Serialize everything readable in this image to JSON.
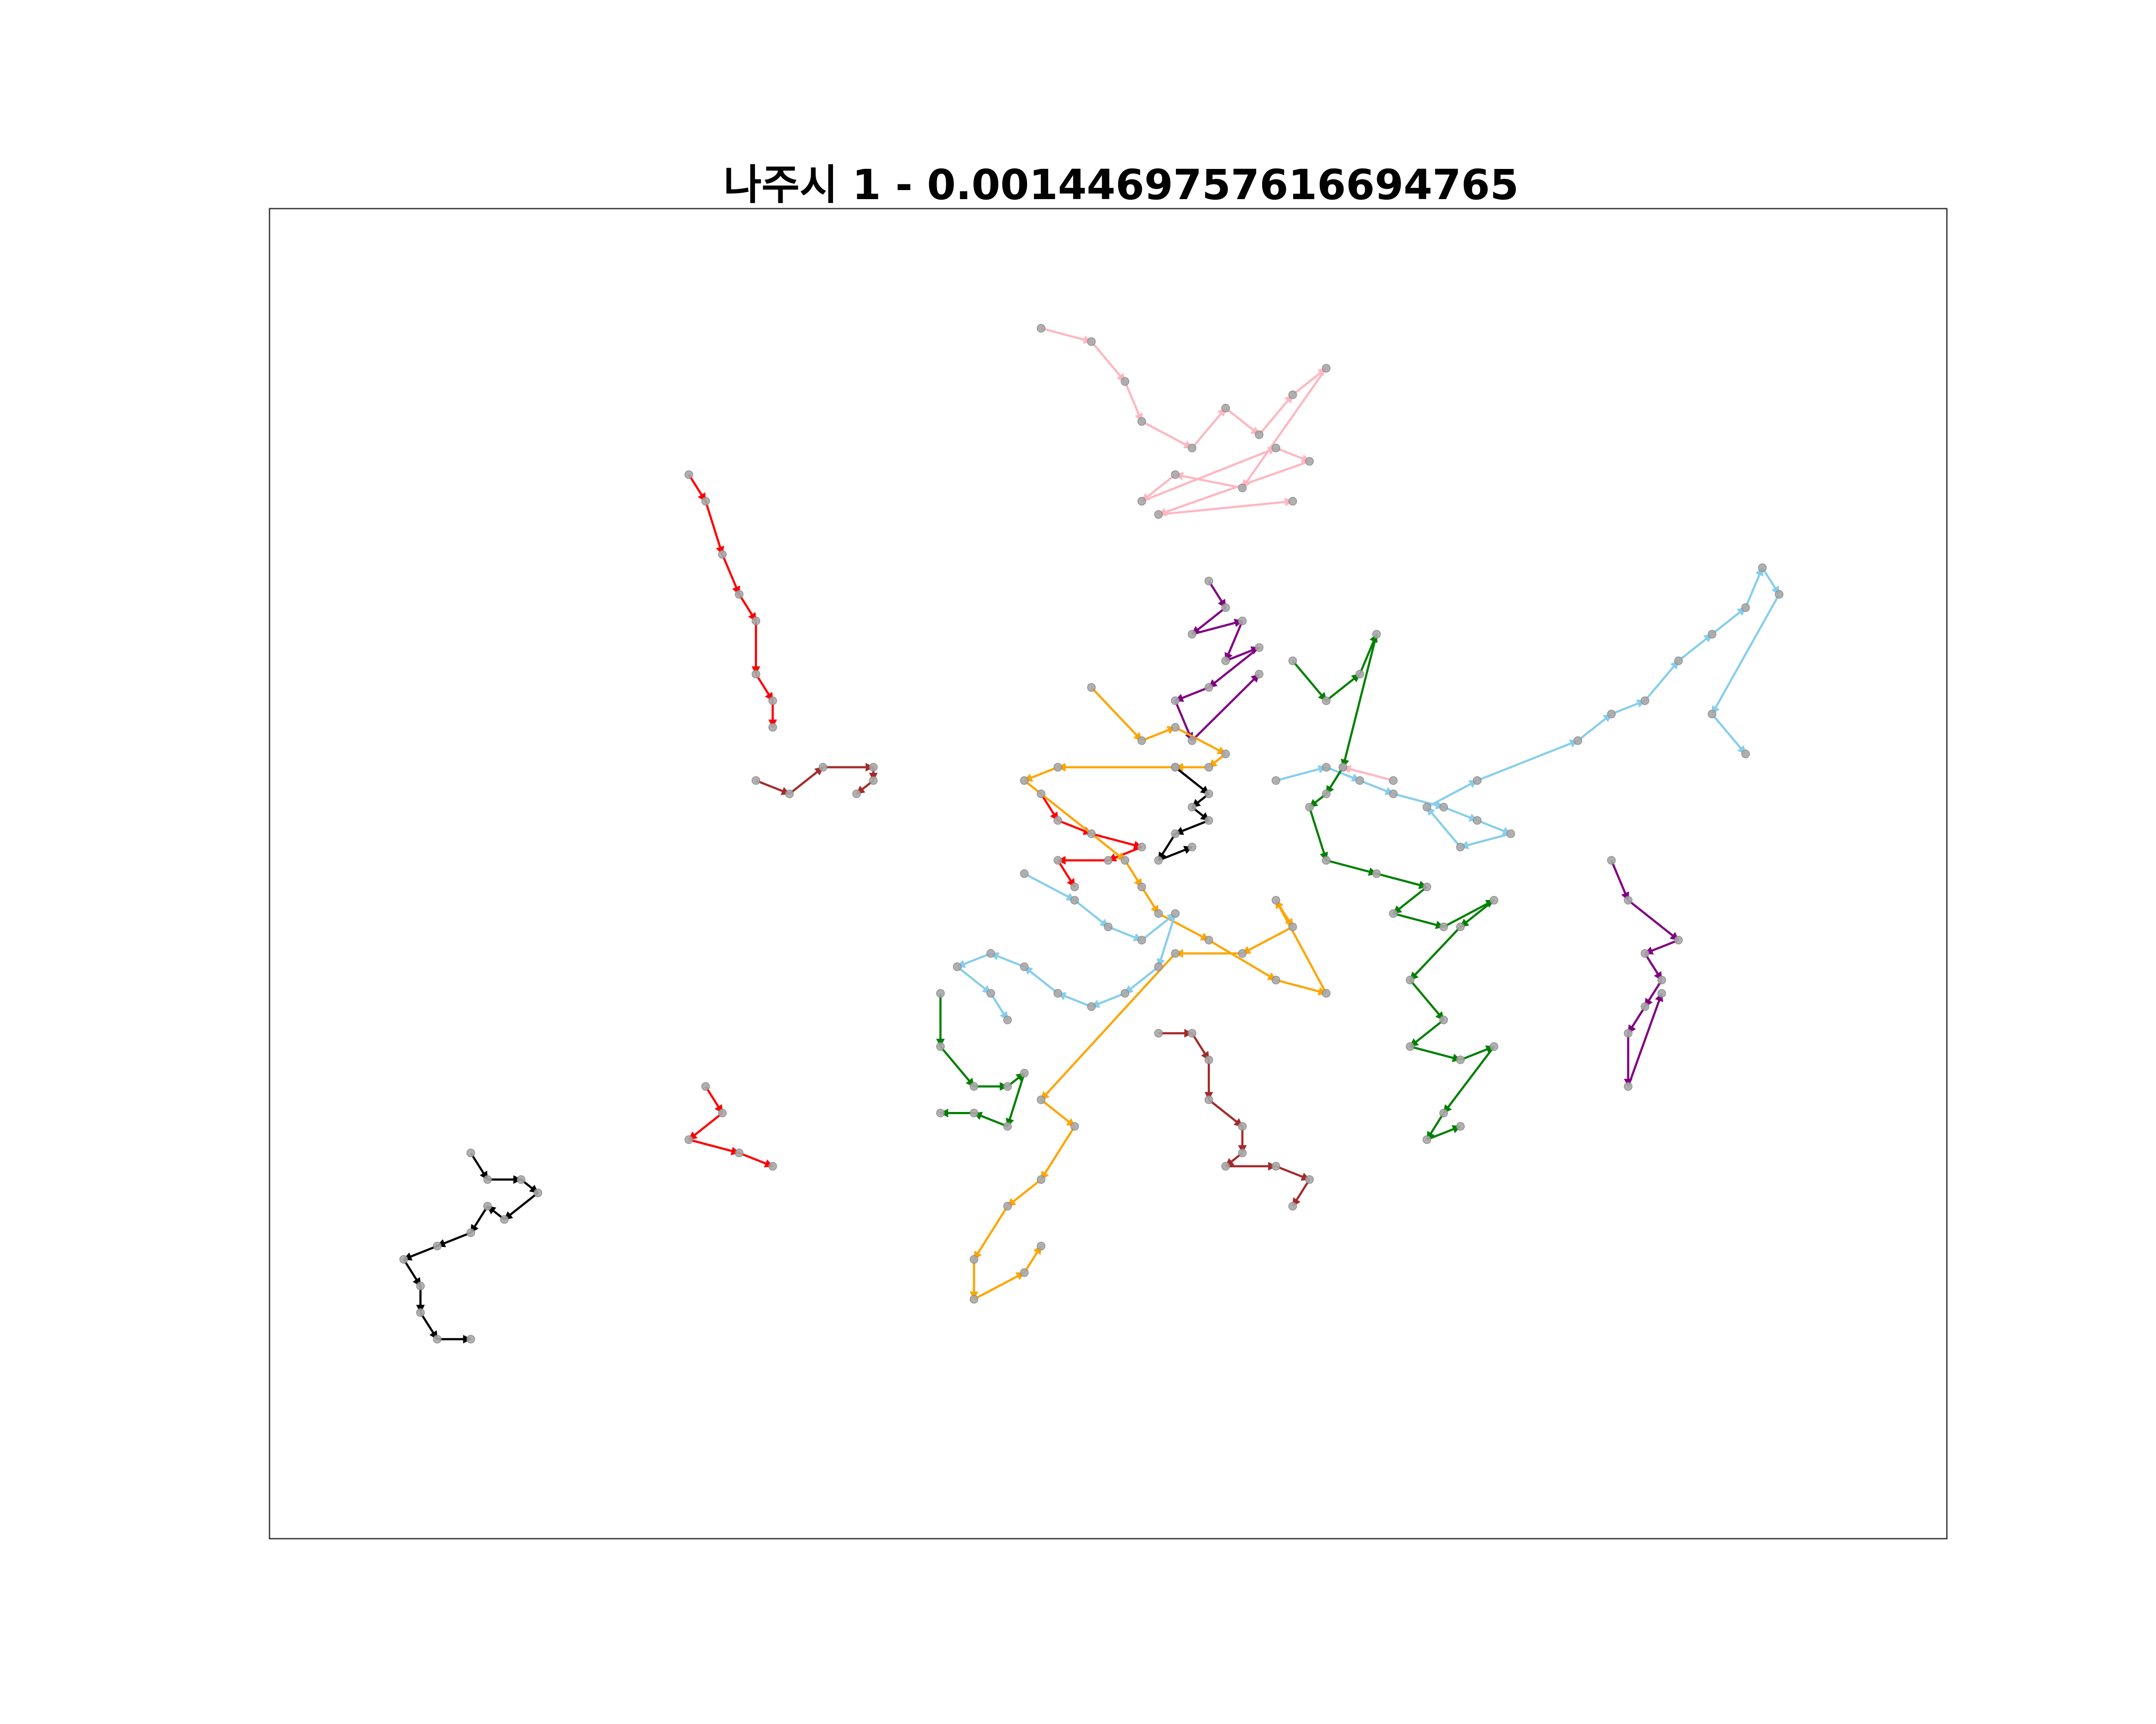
{
  "chart_data": {
    "type": "scatter",
    "title": "나주시 1 - 0.0014469757616694765",
    "xlabel": "",
    "ylabel": "",
    "xlim": [
      0,
      100
    ],
    "ylim": [
      0,
      100
    ],
    "axes_ticks": false,
    "grid": false,
    "legend": "none",
    "node_color": "#a9a9a9",
    "series": [
      {
        "color": "#ffb6c1",
        "points": [
          [
            46,
            91
          ],
          [
            49,
            90
          ],
          [
            51,
            87
          ],
          [
            52,
            84
          ],
          [
            55,
            82
          ],
          [
            57,
            85
          ],
          [
            59,
            83
          ],
          [
            61,
            86
          ],
          [
            63,
            88
          ],
          [
            58,
            79
          ],
          [
            54,
            80
          ],
          [
            52,
            78
          ],
          [
            60,
            82
          ],
          [
            62,
            81
          ],
          [
            53,
            77
          ],
          [
            61,
            78
          ],
          [
            67,
            57
          ],
          [
            64,
            58
          ]
        ]
      },
      {
        "color": "#800080",
        "points": [
          [
            56,
            72
          ],
          [
            57,
            70
          ],
          [
            55,
            68
          ],
          [
            58,
            69
          ],
          [
            57,
            66
          ],
          [
            59,
            67
          ],
          [
            56,
            64
          ],
          [
            54,
            63
          ],
          [
            55,
            60
          ],
          [
            59,
            65
          ],
          [
            80,
            51
          ],
          [
            81,
            48
          ],
          [
            84,
            45
          ],
          [
            82,
            44
          ],
          [
            83,
            42
          ],
          [
            82,
            40
          ],
          [
            81,
            38
          ],
          [
            81,
            34
          ],
          [
            83,
            41
          ]
        ]
      },
      {
        "color": "#ff0000",
        "points": [
          [
            25,
            80
          ],
          [
            26,
            78
          ],
          [
            27,
            74
          ],
          [
            28,
            71
          ],
          [
            29,
            69
          ],
          [
            29,
            65
          ],
          [
            30,
            63
          ],
          [
            30,
            61
          ],
          [
            46,
            56
          ],
          [
            47,
            54
          ],
          [
            49,
            53
          ],
          [
            52,
            52
          ],
          [
            50,
            51
          ],
          [
            47,
            51
          ],
          [
            48,
            49
          ],
          [
            26,
            34
          ],
          [
            27,
            32
          ],
          [
            25,
            30
          ],
          [
            28,
            29
          ],
          [
            30,
            28
          ]
        ]
      },
      {
        "color": "#a52a2a",
        "points": [
          [
            29,
            57
          ],
          [
            31,
            56
          ],
          [
            33,
            58
          ],
          [
            36,
            58
          ],
          [
            36,
            57
          ],
          [
            35,
            56
          ],
          [
            53,
            38
          ],
          [
            55,
            38
          ],
          [
            56,
            36
          ],
          [
            56,
            33
          ],
          [
            58,
            31
          ],
          [
            58,
            29
          ],
          [
            57,
            28
          ],
          [
            60,
            28
          ],
          [
            62,
            27
          ],
          [
            61,
            25
          ]
        ]
      },
      {
        "color": "#ffa500",
        "points": [
          [
            49,
            64
          ],
          [
            52,
            60
          ],
          [
            54,
            61
          ],
          [
            57,
            59
          ],
          [
            56,
            58
          ],
          [
            54,
            58
          ],
          [
            47,
            58
          ],
          [
            45,
            57
          ],
          [
            51,
            51
          ],
          [
            52,
            49
          ],
          [
            53,
            47
          ],
          [
            56,
            45
          ],
          [
            60,
            42
          ],
          [
            63,
            41
          ],
          [
            60,
            48
          ],
          [
            61,
            46
          ],
          [
            58,
            44
          ],
          [
            54,
            44
          ],
          [
            46,
            33
          ],
          [
            48,
            31
          ],
          [
            46,
            27
          ],
          [
            44,
            25
          ],
          [
            42,
            21
          ],
          [
            42,
            18
          ],
          [
            45,
            20
          ],
          [
            46,
            22
          ]
        ]
      },
      {
        "color": "#000000",
        "points": [
          [
            54,
            58
          ],
          [
            56,
            56
          ],
          [
            55,
            55
          ],
          [
            56,
            54
          ],
          [
            54,
            53
          ],
          [
            53,
            51
          ],
          [
            55,
            52
          ],
          [
            12,
            29
          ],
          [
            13,
            27
          ],
          [
            15,
            27
          ],
          [
            16,
            26
          ],
          [
            14,
            24
          ],
          [
            13,
            25
          ],
          [
            12,
            23
          ],
          [
            10,
            22
          ],
          [
            8,
            21
          ],
          [
            9,
            19
          ],
          [
            9,
            17
          ],
          [
            10,
            15
          ],
          [
            12,
            15
          ]
        ]
      },
      {
        "color": "#87ceeb",
        "points": [
          [
            60,
            57
          ],
          [
            63,
            58
          ],
          [
            65,
            57
          ],
          [
            67,
            56
          ],
          [
            70,
            55
          ],
          [
            72,
            54
          ],
          [
            74,
            53
          ],
          [
            71,
            52
          ],
          [
            69,
            55
          ],
          [
            72,
            57
          ],
          [
            78,
            60
          ],
          [
            80,
            62
          ],
          [
            82,
            63
          ],
          [
            84,
            66
          ],
          [
            86,
            68
          ],
          [
            88,
            70
          ],
          [
            89,
            73
          ],
          [
            90,
            71
          ],
          [
            86,
            62
          ],
          [
            88,
            59
          ],
          [
            45,
            50
          ],
          [
            48,
            48
          ],
          [
            50,
            46
          ],
          [
            52,
            45
          ],
          [
            54,
            47
          ],
          [
            53,
            43
          ],
          [
            51,
            41
          ],
          [
            49,
            40
          ],
          [
            47,
            41
          ],
          [
            45,
            43
          ],
          [
            43,
            44
          ],
          [
            41,
            43
          ],
          [
            43,
            41
          ],
          [
            44,
            39
          ]
        ]
      },
      {
        "color": "#008000",
        "points": [
          [
            61,
            66
          ],
          [
            63,
            63
          ],
          [
            65,
            65
          ],
          [
            66,
            68
          ],
          [
            64,
            58
          ],
          [
            63,
            56
          ],
          [
            62,
            55
          ],
          [
            63,
            51
          ],
          [
            66,
            50
          ],
          [
            69,
            49
          ],
          [
            67,
            47
          ],
          [
            70,
            46
          ],
          [
            73,
            48
          ],
          [
            71,
            46
          ],
          [
            68,
            42
          ],
          [
            70,
            39
          ],
          [
            68,
            37
          ],
          [
            71,
            36
          ],
          [
            73,
            37
          ],
          [
            70,
            32
          ],
          [
            69,
            30
          ],
          [
            71,
            31
          ],
          [
            40,
            41
          ],
          [
            40,
            37
          ],
          [
            42,
            34
          ],
          [
            44,
            34
          ],
          [
            45,
            35
          ],
          [
            44,
            31
          ],
          [
            42,
            32
          ],
          [
            40,
            32
          ]
        ]
      }
    ]
  }
}
